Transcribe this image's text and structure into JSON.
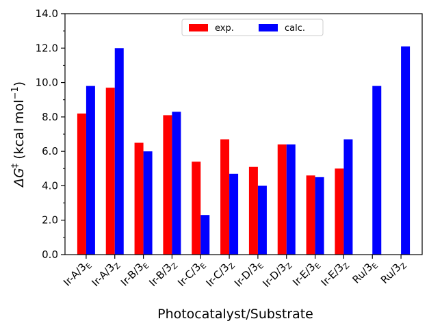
{
  "chart_data": {
    "type": "bar",
    "xlabel": "Photocatalyst/Substrate",
    "ylabel_prefix": "ΔG",
    "ylabel_sup1": "‡",
    "ylabel_middle": " (kcal mol",
    "ylabel_sup2": "−1",
    "ylabel_suffix": ")",
    "ylim": [
      0,
      14
    ],
    "yticks": [
      "0.0",
      "2.0",
      "4.0",
      "6.0",
      "8.0",
      "10.0",
      "12.0",
      "14.0"
    ],
    "ytick_values": [
      0,
      2,
      4,
      6,
      8,
      10,
      12,
      14
    ],
    "categories": [
      {
        "base": "Ir-A/3",
        "sub": "E"
      },
      {
        "base": "Ir-A/3",
        "sub": "Z"
      },
      {
        "base": "Ir-B/3",
        "sub": "E"
      },
      {
        "base": "Ir-B/3",
        "sub": "Z"
      },
      {
        "base": "Ir-C/3",
        "sub": "E"
      },
      {
        "base": "Ir-C/3",
        "sub": "Z"
      },
      {
        "base": "Ir-D/3",
        "sub": "E"
      },
      {
        "base": "Ir-D/3",
        "sub": "Z"
      },
      {
        "base": "Ir-E/3",
        "sub": "E"
      },
      {
        "base": "Ir-E/3",
        "sub": "Z"
      },
      {
        "base": "Ru/3",
        "sub": "E"
      },
      {
        "base": "Ru/3",
        "sub": "Z"
      }
    ],
    "series": [
      {
        "name": "exp.",
        "color": "#ff0000",
        "values": [
          8.2,
          9.7,
          6.5,
          8.1,
          5.4,
          6.7,
          5.1,
          6.4,
          4.6,
          5.0,
          null,
          null
        ]
      },
      {
        "name": "calc.",
        "color": "#0000ff",
        "values": [
          9.8,
          12.0,
          6.0,
          8.3,
          2.3,
          4.7,
          4.0,
          6.4,
          4.5,
          6.7,
          9.8,
          12.1
        ]
      }
    ],
    "minor_yticks": true,
    "grid": false,
    "legend_position": "top-center"
  }
}
